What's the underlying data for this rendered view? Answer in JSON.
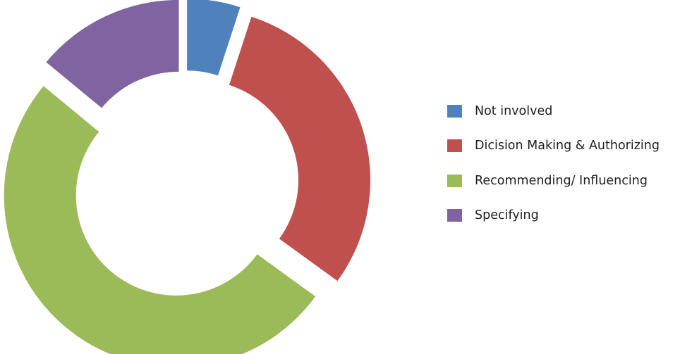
{
  "chart_data": {
    "type": "pie",
    "variant": "exploded-donut",
    "title": "",
    "series": [
      {
        "categories": [
          "Not involved",
          "Dicision Making & Authorizing",
          "Recommending/ Influencing",
          "Specifying"
        ],
        "values": [
          5,
          30,
          51,
          14
        ],
        "colors": [
          "#4F81BD",
          "#C0504D",
          "#9BBB59",
          "#8064A2"
        ]
      }
    ],
    "legend": {
      "placement": "right",
      "entries": [
        "Not involved",
        "Dicision Making & Authorizing",
        "Recommending/ Influencing",
        "Specifying"
      ]
    }
  }
}
